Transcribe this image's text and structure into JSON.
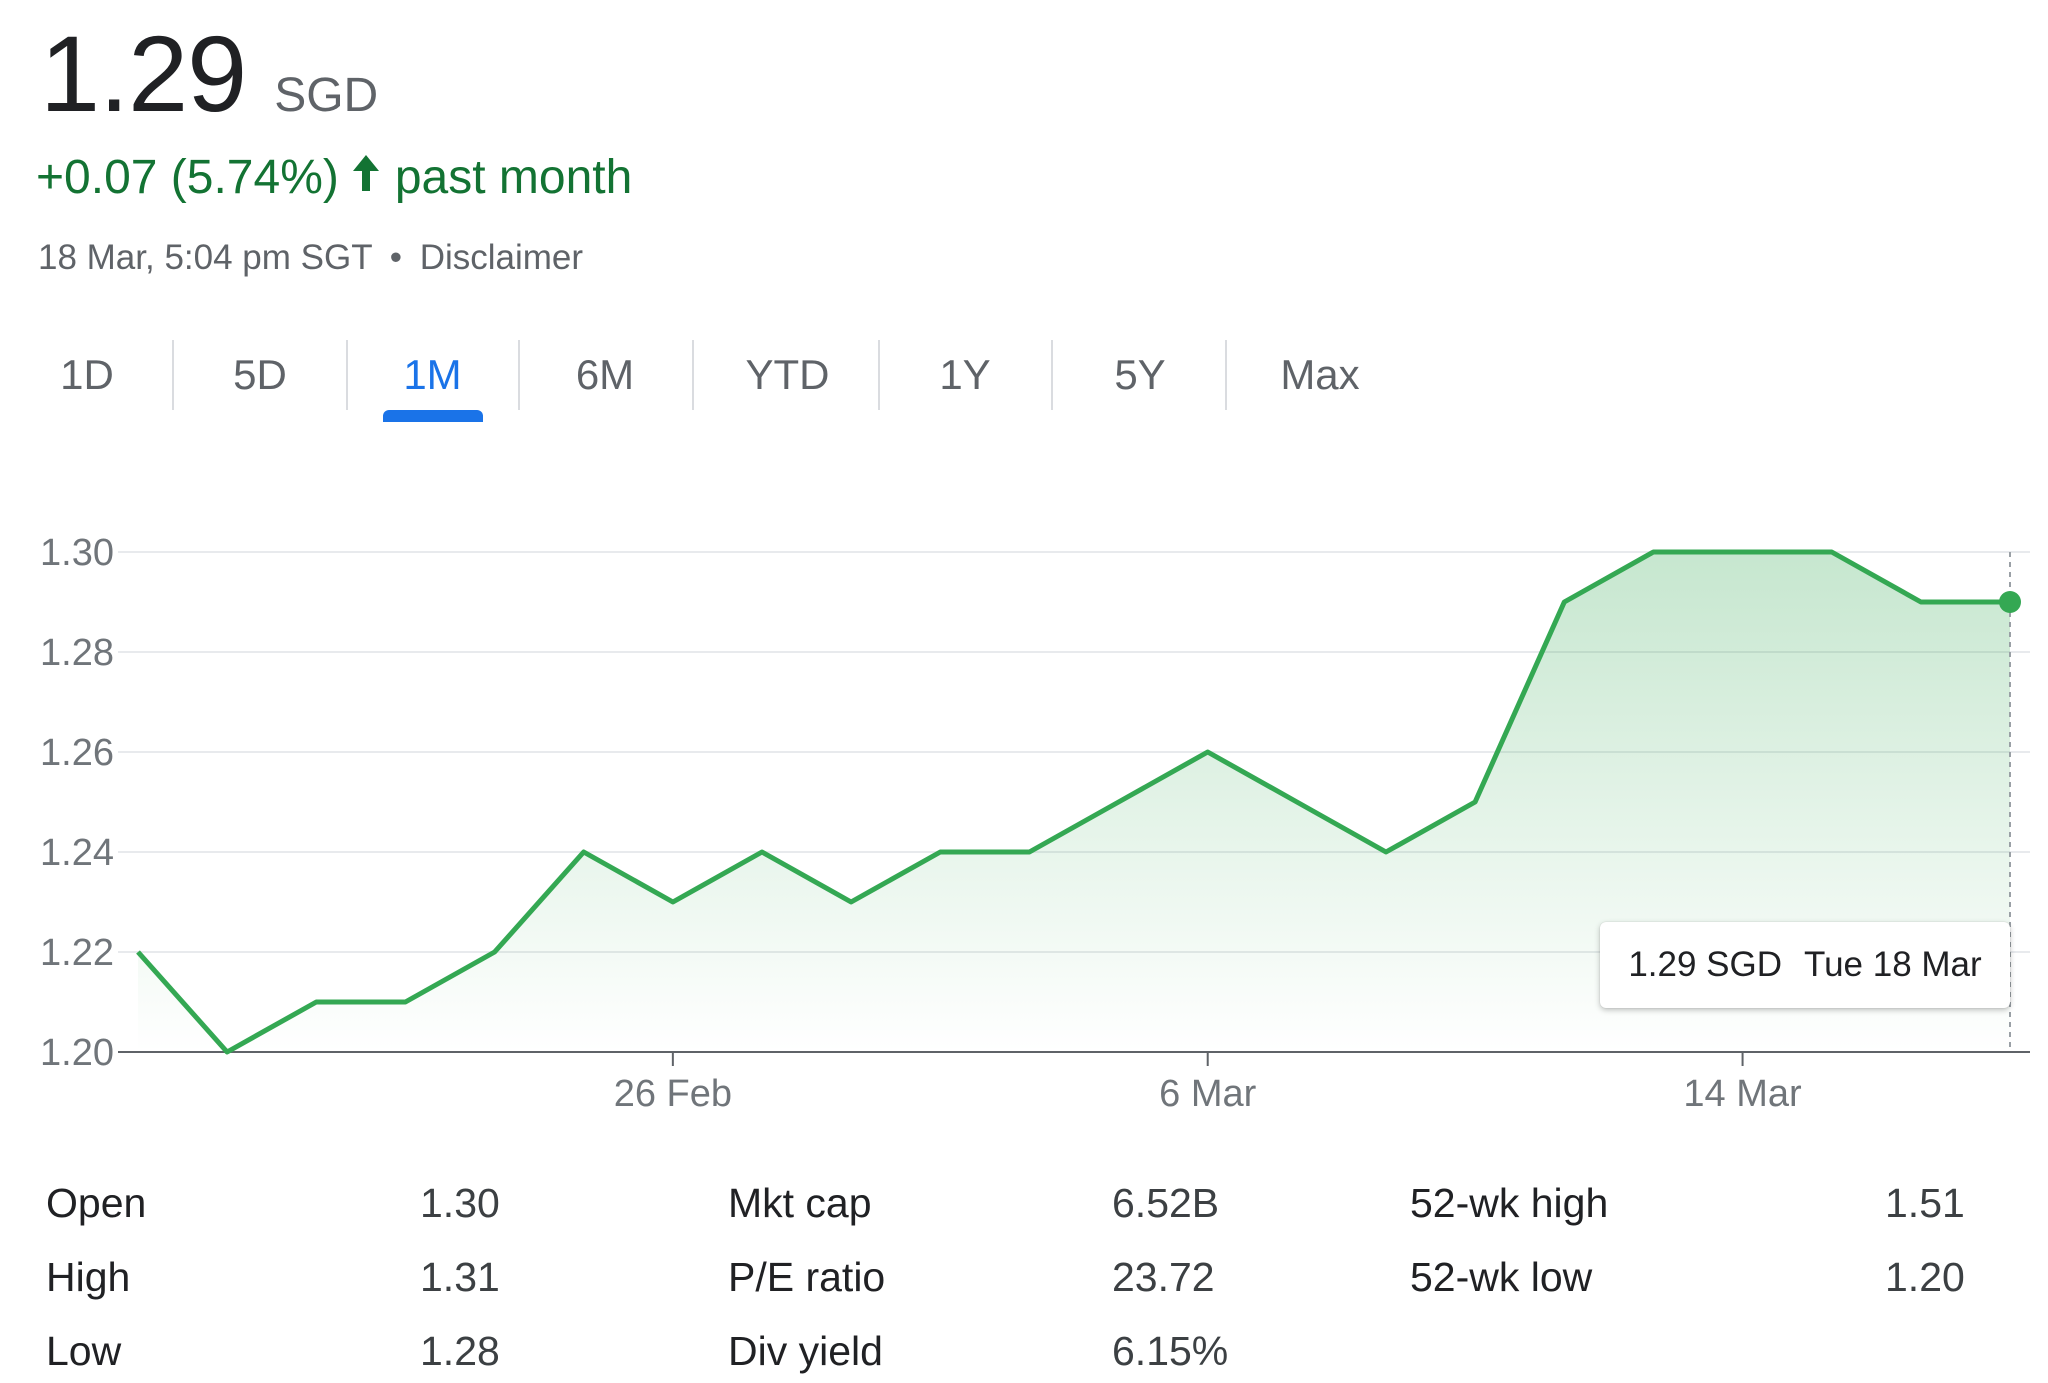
{
  "quote": {
    "price": "1.29",
    "currency": "SGD",
    "change": "+0.07 (5.74%)",
    "arrow_icon": "arrow-up-icon",
    "period": "past month",
    "timestamp": "18 Mar, 5:04 pm SGT",
    "separator": "•",
    "disclaimer": "Disclaimer"
  },
  "colors": {
    "up": "#137333",
    "line": "#34a853",
    "accent": "#1a73e8"
  },
  "tabs": [
    {
      "label": "1D",
      "active": false
    },
    {
      "label": "5D",
      "active": false
    },
    {
      "label": "1M",
      "active": true
    },
    {
      "label": "6M",
      "active": false
    },
    {
      "label": "YTD",
      "active": false
    },
    {
      "label": "1Y",
      "active": false
    },
    {
      "label": "5Y",
      "active": false
    },
    {
      "label": "Max",
      "active": false
    }
  ],
  "chart_data": {
    "type": "area",
    "y_ticks": [
      "1.30",
      "1.28",
      "1.26",
      "1.24",
      "1.22",
      "1.20"
    ],
    "x_ticks": [
      "26 Feb",
      "6 Mar",
      "14 Mar"
    ],
    "ylim": [
      1.2,
      1.3
    ],
    "grid": true,
    "series": [
      {
        "values": [
          1.22,
          1.2,
          1.21,
          1.21,
          1.22,
          1.24,
          1.23,
          1.24,
          1.23,
          1.24,
          1.24,
          1.25,
          1.26,
          1.25,
          1.24,
          1.25,
          1.29,
          1.3,
          1.3,
          1.3,
          1.29,
          1.29
        ]
      }
    ],
    "tooltip": {
      "value": "1.29 SGD",
      "date": "Tue 18 Mar"
    }
  },
  "stats": [
    {
      "label": "Open",
      "value": "1.30"
    },
    {
      "label": "High",
      "value": "1.31"
    },
    {
      "label": "Low",
      "value": "1.28"
    },
    {
      "label": "Mkt cap",
      "value": "6.52B"
    },
    {
      "label": "P/E ratio",
      "value": "23.72"
    },
    {
      "label": "Div yield",
      "value": "6.15%"
    },
    {
      "label": "52-wk high",
      "value": "1.51"
    },
    {
      "label": "52-wk low",
      "value": "1.20"
    }
  ]
}
